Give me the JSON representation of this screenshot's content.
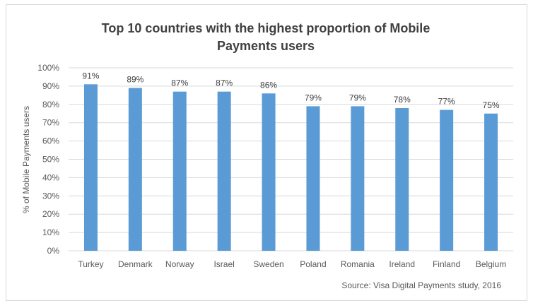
{
  "chart_data": {
    "type": "bar",
    "title": "Top 10 countries with the highest proportion of Mobile Payments users",
    "title_lines": [
      "Top 10 countries with the highest proportion of Mobile",
      "Payments users"
    ],
    "xlabel": "",
    "ylabel": "% of Mobile Payments users",
    "categories": [
      "Turkey",
      "Denmark",
      "Norway",
      "Israel",
      "Sweden",
      "Poland",
      "Romania",
      "Ireland",
      "Finland",
      "Belgium"
    ],
    "values": [
      91,
      89,
      87,
      87,
      86,
      79,
      79,
      78,
      77,
      75
    ],
    "data_labels": [
      "91%",
      "89%",
      "87%",
      "87%",
      "86%",
      "79%",
      "79%",
      "78%",
      "77%",
      "75%"
    ],
    "ylim": [
      0,
      100
    ],
    "yticks": [
      "0%",
      "10%",
      "20%",
      "30%",
      "40%",
      "50%",
      "60%",
      "70%",
      "80%",
      "90%",
      "100%"
    ],
    "grid": true,
    "bar_color": "#5b9bd5",
    "source": "Source: Visa Digital Payments study, 2016"
  }
}
